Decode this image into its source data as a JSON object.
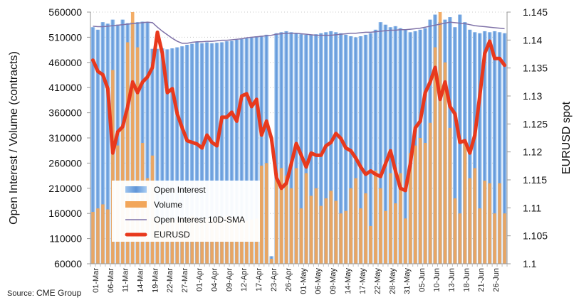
{
  "chart_data": {
    "type": "bar",
    "ylabel": "Open Interest / Volume (contracts)",
    "y2label": "EURUSD spot",
    "ylim": [
      60000,
      560000
    ],
    "y2lim": [
      1.1,
      1.145
    ],
    "yticks": [
      "560000",
      "510000",
      "460000",
      "410000",
      "360000",
      "310000",
      "260000",
      "210000",
      "160000",
      "110000",
      "60000"
    ],
    "y2ticks": [
      "1.145",
      "1.14",
      "1.135",
      "1.13",
      "1.125",
      "1.12",
      "1.115",
      "1.11",
      "1.105",
      "1.1"
    ],
    "xticks": [
      "01-Mar",
      "06-Mar",
      "11-Mar",
      "14-Mar",
      "19-Mar",
      "22-Mar",
      "27-Mar",
      "01-Apr",
      "04-Apr",
      "09-Apr",
      "12-Apr",
      "17-Apr",
      "23-Apr",
      "26-Apr",
      "01-May",
      "06-May",
      "09-May",
      "14-May",
      "17-May",
      "22-May",
      "28-May",
      "31-May",
      "05-Jun",
      "10-Jun",
      "13-Jun",
      "18-Jun",
      "21-Jun",
      "26-Jun"
    ],
    "grid": true,
    "legend_position": "bottom-left",
    "series": [
      {
        "name": "Open Interest",
        "type": "bar",
        "color": "#6fa2dc",
        "values": [
          530000,
          525000,
          540000,
          537000,
          545000,
          535000,
          545000,
          538000,
          540000,
          540000,
          541000,
          540000,
          487000,
          487000,
          488000,
          486000,
          488000,
          490000,
          492000,
          495000,
          497000,
          500000,
          498000,
          500000,
          498000,
          499000,
          500000,
          502000,
          503000,
          505000,
          508000,
          508000,
          510000,
          512000,
          513000,
          515000,
          75000,
          518000,
          520000,
          522000,
          520000,
          518000,
          516000,
          515000,
          515000,
          516000,
          518000,
          520000,
          522000,
          520000,
          518000,
          515000,
          512000,
          510000,
          512000,
          515000,
          518000,
          525000,
          540000,
          535000,
          530000,
          532000,
          528000,
          525000,
          520000,
          522000,
          525000,
          528000,
          545000,
          555000,
          540000,
          545000,
          550000,
          530000,
          555000,
          540000,
          525000,
          520000,
          518000,
          522000,
          520000,
          522000,
          520000,
          518000
        ]
      },
      {
        "name": "Volume",
        "type": "bar",
        "color": "#f2a65a",
        "values": [
          163000,
          170000,
          178000,
          168000,
          445000,
          295000,
          330000,
          500000,
          560000,
          490000,
          300000,
          230000,
          275000,
          150000,
          140000,
          145000,
          150000,
          148000,
          152000,
          150000,
          155000,
          150000,
          145000,
          150000,
          148000,
          150000,
          152000,
          155000,
          150000,
          148000,
          150000,
          145000,
          148000,
          150000,
          255000,
          260000,
          70000,
          240000,
          250000,
          235000,
          210000,
          250000,
          170000,
          240000,
          195000,
          210000,
          175000,
          190000,
          205000,
          185000,
          160000,
          165000,
          210000,
          230000,
          170000,
          200000,
          135000,
          245000,
          210000,
          165000,
          240000,
          180000,
          240000,
          150000,
          280000,
          295000,
          310000,
          300000,
          340000,
          490000,
          560000,
          460000,
          330000,
          190000,
          160000,
          300000,
          230000,
          250000,
          170000,
          225000,
          220000,
          160000,
          220000,
          160000
        ]
      },
      {
        "name": "Open Interest 10D-SMA",
        "type": "line",
        "color": "#7f72a8",
        "values": [
          532000,
          531000,
          531000,
          532000,
          533000,
          534000,
          535000,
          536000,
          537000,
          538000,
          539000,
          540000,
          539000,
          530000,
          522000,
          515000,
          508000,
          502000,
          498000,
          498000,
          500000,
          501000,
          501000,
          502000,
          502000,
          503000,
          504000,
          504000,
          505000,
          506000,
          507000,
          509000,
          510000,
          511000,
          512000,
          513000,
          514000,
          516000,
          517000,
          518000,
          518000,
          518000,
          517000,
          516000,
          515000,
          514000,
          514000,
          514000,
          514000,
          515000,
          516000,
          517000,
          518000,
          518000,
          519000,
          520000,
          520000,
          521000,
          522000,
          523000,
          524000,
          524000,
          525000,
          525000,
          526000,
          527000,
          528000,
          530000,
          532000,
          534000,
          536000,
          538000,
          540000,
          539000,
          538000,
          537000,
          535000,
          533000,
          532000,
          531000,
          530000,
          529000,
          528000,
          527000
        ]
      },
      {
        "name": "EURUSD",
        "type": "line",
        "axis": "right",
        "color": "#e8391d",
        "values": [
          1.1364,
          1.1344,
          1.1338,
          1.1313,
          1.1198,
          1.1236,
          1.1245,
          1.1281,
          1.1325,
          1.1306,
          1.1325,
          1.1334,
          1.1351,
          1.1414,
          1.1376,
          1.1306,
          1.1313,
          1.1268,
          1.1243,
          1.122,
          1.1217,
          1.1214,
          1.1207,
          1.123,
          1.1217,
          1.1211,
          1.1262,
          1.1262,
          1.1271,
          1.1255,
          1.13,
          1.1304,
          1.1281,
          1.1294,
          1.123,
          1.1255,
          1.1224,
          1.1154,
          1.1135,
          1.1144,
          1.1179,
          1.1215,
          1.1194,
          1.1173,
          1.1198,
          1.1194,
          1.1194,
          1.1211,
          1.1217,
          1.1233,
          1.1224,
          1.1207,
          1.1202,
          1.1189,
          1.1173,
          1.116,
          1.1166,
          1.116,
          1.1156,
          1.1179,
          1.1202,
          1.1166,
          1.1135,
          1.1131,
          1.1179,
          1.1243,
          1.1255,
          1.1306,
          1.1325,
          1.1351,
          1.1294,
          1.1325,
          1.1281,
          1.1268,
          1.1217,
          1.122,
          1.1198,
          1.123,
          1.13,
          1.1376,
          1.1398,
          1.1367,
          1.1367,
          1.1355
        ]
      }
    ]
  },
  "source_label": "Source:",
  "source_name": "CME Group"
}
